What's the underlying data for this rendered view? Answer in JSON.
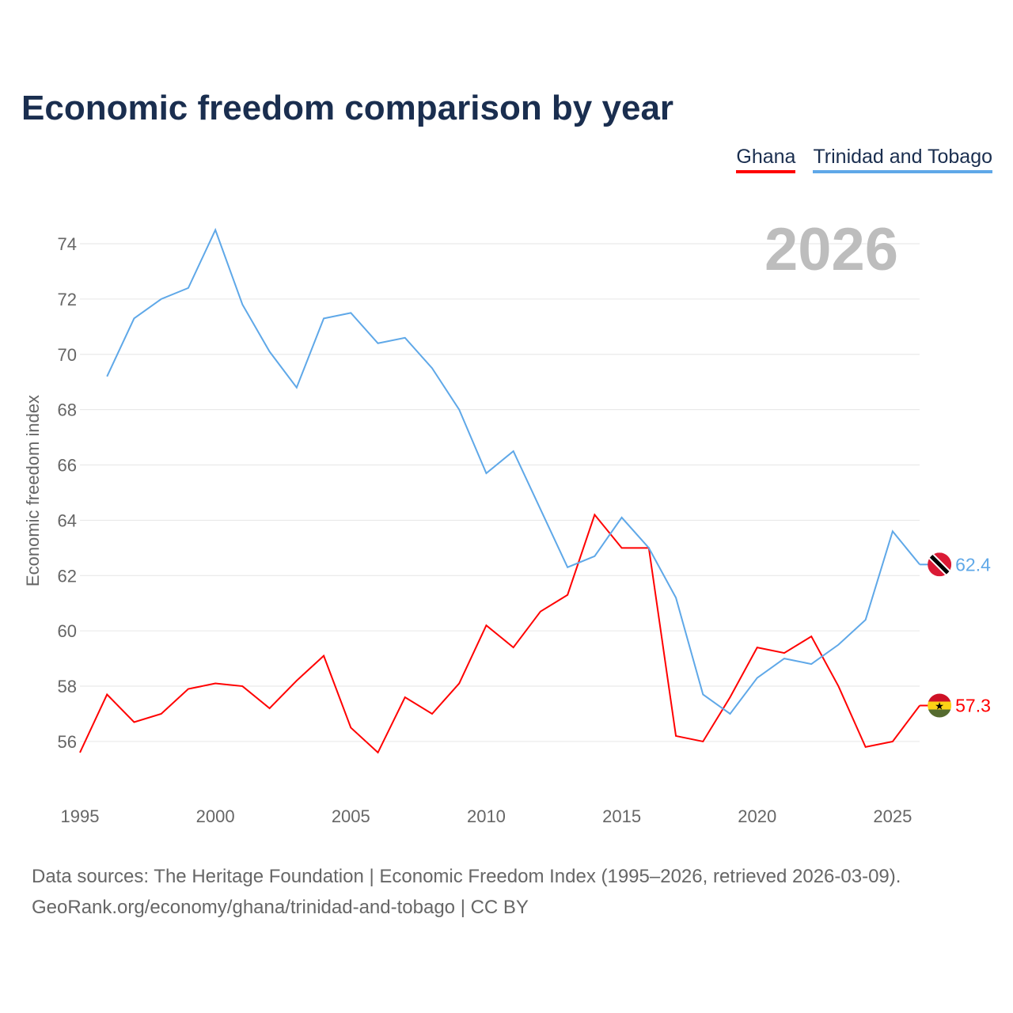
{
  "chart_data": {
    "type": "line",
    "title": "Economic freedom comparison by year",
    "xlabel": "",
    "ylabel": "Economic freedom index",
    "xlim": [
      1995,
      2026
    ],
    "ylim": [
      54.4,
      75
    ],
    "yticks": [
      56,
      58,
      60,
      62,
      64,
      66,
      68,
      70,
      72,
      74
    ],
    "xticks": [
      1995,
      2000,
      2005,
      2010,
      2015,
      2020,
      2025
    ],
    "grid": true,
    "legend": "top-right",
    "current_year": "2026",
    "series": [
      {
        "name": "Ghana",
        "color": "#ff0000",
        "end_label": "57.3",
        "flag": "ghana-flag-icon",
        "x": [
          1995,
          1996,
          1997,
          1998,
          1999,
          2000,
          2001,
          2002,
          2003,
          2004,
          2005,
          2006,
          2007,
          2008,
          2009,
          2010,
          2011,
          2012,
          2013,
          2014,
          2015,
          2016,
          2017,
          2018,
          2019,
          2020,
          2021,
          2022,
          2023,
          2024,
          2025,
          2026
        ],
        "values": [
          55.6,
          57.7,
          56.7,
          57.0,
          57.9,
          58.1,
          58.0,
          57.2,
          58.2,
          59.1,
          56.5,
          55.6,
          57.6,
          57.0,
          58.1,
          60.2,
          59.4,
          60.7,
          61.3,
          64.2,
          63.0,
          63.0,
          56.2,
          56.0,
          57.6,
          59.4,
          59.2,
          59.8,
          58.0,
          55.8,
          56.0,
          57.3
        ]
      },
      {
        "name": "Trinidad and Tobago",
        "color": "#5fa8e8",
        "end_label": "62.4",
        "flag": "trinidad-flag-icon",
        "x": [
          1996,
          1997,
          1998,
          1999,
          2000,
          2001,
          2002,
          2003,
          2004,
          2005,
          2006,
          2007,
          2008,
          2009,
          2010,
          2011,
          2012,
          2013,
          2014,
          2015,
          2016,
          2017,
          2018,
          2019,
          2020,
          2021,
          2022,
          2023,
          2024,
          2025,
          2026
        ],
        "values": [
          69.2,
          71.3,
          72.0,
          72.4,
          74.5,
          71.8,
          70.1,
          68.8,
          71.3,
          71.5,
          70.4,
          70.6,
          69.5,
          68.0,
          65.7,
          66.5,
          64.4,
          62.3,
          62.7,
          64.1,
          63.0,
          61.2,
          57.7,
          57.0,
          58.3,
          59.0,
          58.8,
          59.5,
          60.4,
          63.6,
          62.4
        ]
      }
    ]
  },
  "footer": {
    "line1": "Data sources: The Heritage Foundation | Economic Freedom Index (1995–2026, retrieved 2026-03-09).",
    "line2": "GeoRank.org/economy/ghana/trinidad-and-tobago | CC BY"
  }
}
